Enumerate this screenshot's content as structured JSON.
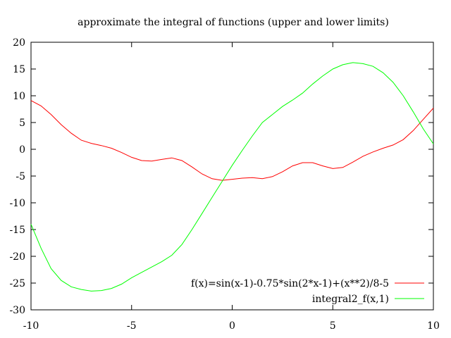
{
  "chart_data": {
    "type": "line",
    "title": "approximate the integral of functions (upper and lower limits)",
    "xlabel": "",
    "ylabel": "",
    "xlim": [
      -10,
      10
    ],
    "ylim": [
      -30,
      20
    ],
    "xticks": [
      -10,
      -5,
      0,
      5,
      10
    ],
    "yticks": [
      -30,
      -25,
      -20,
      -15,
      -10,
      -5,
      0,
      5,
      10,
      15,
      20
    ],
    "grid": false,
    "legend_position": "bottom-right",
    "series": [
      {
        "name": "f(x)=sin(x-1)-0.75*sin(2*x-1)+(x**2)/8-5",
        "color": "#ff0000",
        "x": [
          -10,
          -9.5,
          -9,
          -8.5,
          -8,
          -7.5,
          -7,
          -6.5,
          -6,
          -5.5,
          -5,
          -4.5,
          -4,
          -3.5,
          -3,
          -2.5,
          -2,
          -1.5,
          -1,
          -0.5,
          0,
          0.5,
          1,
          1.5,
          2,
          2.5,
          3,
          3.5,
          4,
          4.5,
          5,
          5.5,
          6,
          6.5,
          7,
          7.5,
          8,
          8.5,
          9,
          9.5,
          10
        ],
        "y": [
          9.1,
          8.1,
          6.5,
          4.6,
          3.0,
          1.7,
          1.1,
          0.7,
          0.2,
          -0.6,
          -1.5,
          -2.1,
          -2.2,
          -1.9,
          -1.6,
          -2.1,
          -3.3,
          -4.6,
          -5.5,
          -5.8,
          -5.6,
          -5.4,
          -5.3,
          -5.5,
          -5.1,
          -4.2,
          -3.1,
          -2.5,
          -2.5,
          -3.1,
          -3.6,
          -3.4,
          -2.4,
          -1.3,
          -0.5,
          0.2,
          0.8,
          1.8,
          3.5,
          5.6,
          7.7
        ]
      },
      {
        "name": "integral2_f(x,1)",
        "color": "#00ff00",
        "x": [
          -10,
          -9.5,
          -9,
          -8.5,
          -8,
          -7.5,
          -7,
          -6.5,
          -6,
          -5.5,
          -5,
          -4.5,
          -4,
          -3.5,
          -3,
          -2.5,
          -2,
          -1.5,
          -1,
          -0.5,
          0,
          0.5,
          1,
          1.5,
          2,
          2.5,
          3,
          3.5,
          4,
          4.5,
          5,
          5.5,
          6,
          6.5,
          7,
          7.5,
          8,
          8.5,
          9,
          9.5,
          10
        ],
        "y": [
          -14.0,
          -18.5,
          -22.3,
          -24.5,
          -25.7,
          -26.2,
          -26.5,
          -26.4,
          -26.0,
          -25.2,
          -24.0,
          -23.0,
          -22.0,
          -21.0,
          -19.8,
          -17.8,
          -15.0,
          -12.0,
          -9.0,
          -6.0,
          -3.0,
          -0.2,
          2.5,
          5.0,
          6.5,
          8.0,
          9.2,
          10.5,
          12.2,
          13.7,
          15.0,
          15.8,
          16.2,
          16.0,
          15.5,
          14.3,
          12.5,
          10.0,
          7.0,
          3.8,
          1.0
        ]
      }
    ]
  }
}
